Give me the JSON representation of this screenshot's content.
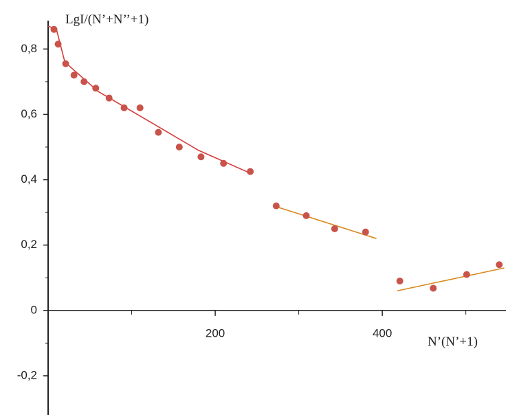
{
  "chart_data": {
    "type": "scatter",
    "y_label": "LgI/(N’+N’’+1)",
    "x_label": "N’(N’+1)",
    "xlim": [
      0,
      548
    ],
    "ylim": [
      -0.32,
      0.95
    ],
    "xticks": [
      200,
      400
    ],
    "x_minor_ticks": [
      100,
      300,
      500
    ],
    "yticks": [
      {
        "value": -0.2,
        "label": "-0,2"
      },
      0,
      {
        "value": 0.2,
        "label": "0,2"
      },
      {
        "value": 0.4,
        "label": "0,4"
      },
      {
        "value": 0.6,
        "label": "0,6"
      },
      {
        "value": 0.8,
        "label": "0,8"
      }
    ],
    "y_minor_ticks": [
      -0.1,
      0.1,
      0.3,
      0.5,
      0.7
    ],
    "points": {
      "color": "#c9534a",
      "x": [
        7,
        12,
        21,
        31,
        43,
        57,
        73,
        91,
        110,
        132,
        157,
        183,
        210,
        242,
        273,
        309,
        343,
        380,
        421,
        461,
        501,
        540
      ],
      "y": [
        0.86,
        0.815,
        0.755,
        0.72,
        0.7,
        0.68,
        0.65,
        0.62,
        0.62,
        0.545,
        0.5,
        0.47,
        0.45,
        0.425,
        0.32,
        0.29,
        0.25,
        0.24,
        0.09,
        0.068,
        0.11,
        0.14
      ]
    },
    "fits": [
      {
        "color": "#d63a3a",
        "x": [
          0,
          10,
          20,
          60,
          120,
          180,
          242
        ],
        "y": [
          0.87,
          0.86,
          0.76,
          0.67,
          0.58,
          0.49,
          0.42
        ]
      },
      {
        "color": "#d9891c",
        "x": [
          270,
          393
        ],
        "y": [
          0.32,
          0.22
        ]
      },
      {
        "color": "#d9891c",
        "x": [
          418,
          546
        ],
        "y": [
          0.06,
          0.13
        ]
      }
    ]
  }
}
